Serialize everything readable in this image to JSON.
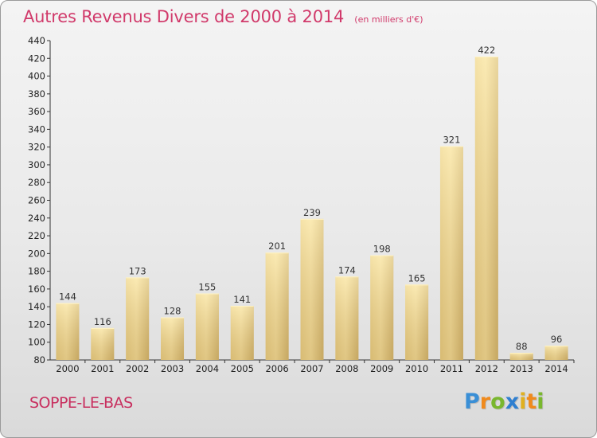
{
  "chart_data": {
    "type": "bar",
    "title": "Autres Revenus Divers de 2000 à 2014",
    "unit": "(en milliers d'€)",
    "categories": [
      "2000",
      "2001",
      "2002",
      "2003",
      "2004",
      "2005",
      "2006",
      "2007",
      "2008",
      "2009",
      "2010",
      "2011",
      "2012",
      "2013",
      "2014"
    ],
    "values": [
      144,
      116,
      173,
      128,
      155,
      141,
      201,
      239,
      174,
      198,
      165,
      321,
      422,
      88,
      96
    ],
    "ylim": [
      80,
      440
    ],
    "yticks": [
      80,
      100,
      120,
      140,
      160,
      180,
      200,
      220,
      240,
      260,
      280,
      300,
      320,
      340,
      360,
      380,
      400,
      420,
      440
    ],
    "grid": false,
    "legend": "none"
  },
  "location": "SOPPE-LE-BAS",
  "logo": {
    "text": "Proxiti",
    "letters": [
      {
        "char": "P",
        "color": "#3a8fd6"
      },
      {
        "char": "r",
        "color": "#f08a1c"
      },
      {
        "char": "o",
        "color": "#79b72e"
      },
      {
        "char": "x",
        "color": "#2f7fd0"
      },
      {
        "char": "i",
        "color": "#e0b020"
      },
      {
        "char": "t",
        "color": "#f08a1c"
      },
      {
        "char": "i",
        "color": "#79b72e"
      }
    ]
  },
  "colors": {
    "title": "#d13a6b",
    "bar_light": "#f7e4a3",
    "bar_dark": "#c8aa62",
    "axis": "#333333"
  }
}
